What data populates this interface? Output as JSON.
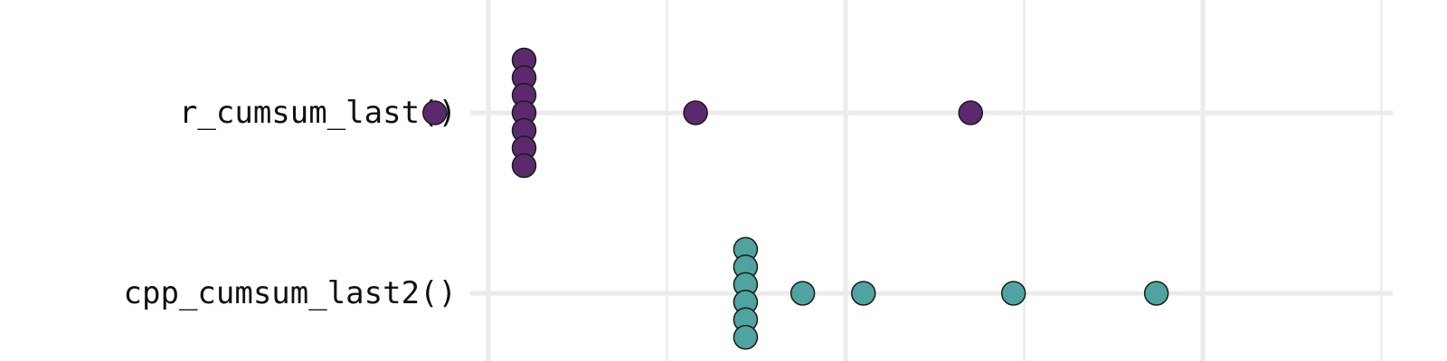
{
  "chart_data": {
    "type": "dotplot",
    "orientation": "horizontal",
    "title": "",
    "xlabel": "",
    "ylabel": "",
    "grid": true,
    "legend": "none",
    "categories": [
      "r_cumsum_last()",
      "cpp_cumsum_last2()"
    ],
    "series": [
      {
        "category": "r_cumsum_last()",
        "color": "#5b2a6e",
        "points": [
          {
            "x": -0.15,
            "count": 1
          },
          {
            "x": 0.1,
            "count": 7
          },
          {
            "x": 0.58,
            "count": 1
          },
          {
            "x": 1.35,
            "count": 1
          }
        ]
      },
      {
        "category": "cpp_cumsum_last2()",
        "color": "#4fa3a0",
        "points": [
          {
            "x": 0.72,
            "count": 6
          },
          {
            "x": 0.88,
            "count": 1
          },
          {
            "x": 1.05,
            "count": 1
          },
          {
            "x": 1.47,
            "count": 1
          },
          {
            "x": 1.87,
            "count": 1
          }
        ]
      }
    ]
  }
}
